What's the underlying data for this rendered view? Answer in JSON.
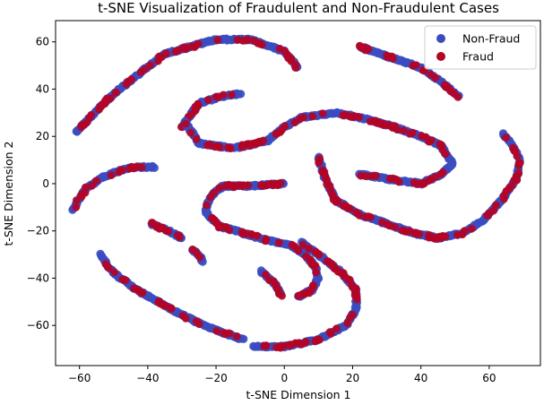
{
  "chart_data": {
    "type": "scatter",
    "title": "t-SNE Visualization of Fraudulent and Non-Fraudulent Cases",
    "xlabel": "t-SNE Dimension 1",
    "ylabel": "t-SNE Dimension 2",
    "xlim": [
      -67,
      75
    ],
    "ylim": [
      -77,
      69
    ],
    "xticks": [
      -60,
      -40,
      -20,
      0,
      20,
      40,
      60
    ],
    "yticks": [
      -60,
      -40,
      -20,
      0,
      20,
      40,
      60
    ],
    "xtick_labels": [
      "−60",
      "−40",
      "−20",
      "0",
      "20",
      "40",
      "60"
    ],
    "ytick_labels": [
      "−60",
      "−40",
      "−20",
      "0",
      "20",
      "40",
      "60"
    ],
    "grid": false,
    "legend_position": "top-right",
    "series": [
      {
        "name": "Non-Fraud",
        "color": "#3b4cc0"
      },
      {
        "name": "Fraud",
        "color": "#b40426"
      }
    ],
    "curves": [
      {
        "points": [
          [
            -61,
            22
          ],
          [
            -50,
            38
          ],
          [
            -35,
            55
          ],
          [
            -20,
            61
          ],
          [
            -10,
            61
          ],
          [
            0,
            56
          ],
          [
            4,
            49
          ]
        ]
      },
      {
        "points": [
          [
            22,
            58
          ],
          [
            30,
            54
          ],
          [
            40,
            49
          ],
          [
            46,
            43
          ],
          [
            51,
            37
          ]
        ]
      },
      {
        "points": [
          [
            -30,
            24
          ],
          [
            -25,
            34
          ],
          [
            -18,
            37
          ],
          [
            -13,
            38
          ]
        ]
      },
      {
        "points": [
          [
            -29,
            26
          ],
          [
            -25,
            17
          ],
          [
            -15,
            15
          ],
          [
            -5,
            18
          ],
          [
            0,
            24
          ],
          [
            5,
            28
          ],
          [
            15,
            30
          ],
          [
            25,
            27
          ],
          [
            32,
            24
          ],
          [
            40,
            20
          ],
          [
            46,
            16
          ],
          [
            49,
            9
          ]
        ]
      },
      {
        "points": [
          [
            -62,
            -11
          ],
          [
            -58,
            -2
          ],
          [
            -53,
            3
          ],
          [
            -45,
            7
          ],
          [
            -38,
            7
          ]
        ]
      },
      {
        "points": [
          [
            22,
            4
          ],
          [
            30,
            2
          ],
          [
            40,
            0
          ],
          [
            46,
            4
          ],
          [
            49,
            8
          ]
        ]
      },
      {
        "points": [
          [
            10,
            11
          ],
          [
            12,
            2
          ],
          [
            15,
            -7
          ],
          [
            22,
            -13
          ],
          [
            30,
            -17
          ],
          [
            38,
            -21
          ],
          [
            45,
            -23
          ],
          [
            52,
            -21
          ],
          [
            58,
            -16
          ],
          [
            63,
            -8
          ],
          [
            68,
            2
          ],
          [
            69,
            10
          ],
          [
            66,
            18
          ],
          [
            64,
            21
          ]
        ]
      },
      {
        "points": [
          [
            0,
            0
          ],
          [
            -10,
            -1
          ],
          [
            -18,
            -1
          ],
          [
            -22,
            -6
          ],
          [
            -23,
            -12
          ],
          [
            -19,
            -18
          ],
          [
            -12,
            -21
          ],
          [
            -5,
            -24
          ],
          [
            2,
            -26
          ],
          [
            6,
            -30
          ],
          [
            9,
            -35
          ],
          [
            10,
            -40
          ],
          [
            8,
            -45
          ],
          [
            4,
            -48
          ]
        ]
      },
      {
        "points": [
          [
            -39,
            -17
          ],
          [
            -34,
            -20
          ],
          [
            -30,
            -23
          ]
        ]
      },
      {
        "points": [
          [
            -27,
            -28
          ],
          [
            -25,
            -30
          ],
          [
            -24,
            -33
          ]
        ]
      },
      {
        "points": [
          [
            -54,
            -30
          ],
          [
            -50,
            -38
          ],
          [
            -42,
            -46
          ],
          [
            -32,
            -54
          ],
          [
            -25,
            -59
          ],
          [
            -18,
            -63
          ],
          [
            -12,
            -66
          ]
        ]
      },
      {
        "points": [
          [
            -7,
            -37
          ],
          [
            -3,
            -42
          ],
          [
            -1,
            -47
          ]
        ]
      },
      {
        "points": [
          [
            -9,
            -69
          ],
          [
            0,
            -69
          ],
          [
            10,
            -66
          ],
          [
            18,
            -60
          ],
          [
            21,
            -53
          ],
          [
            21,
            -45
          ],
          [
            17,
            -38
          ],
          [
            10,
            -30
          ],
          [
            5,
            -25
          ]
        ]
      }
    ]
  }
}
